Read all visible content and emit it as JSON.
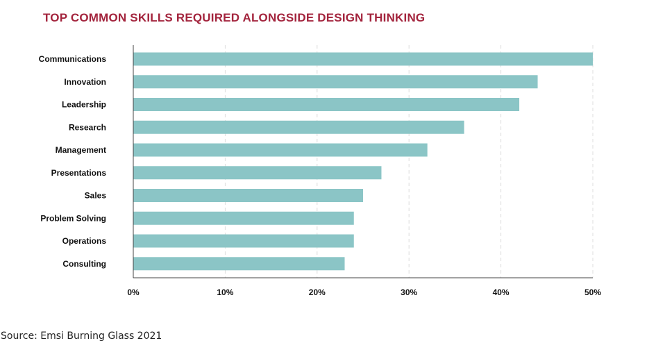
{
  "chart_data": {
    "type": "bar",
    "orientation": "horizontal",
    "title": "TOP COMMON SKILLS REQUIRED ALONGSIDE DESIGN THINKING",
    "categories": [
      "Communications",
      "Innovation",
      "Leadership",
      "Research",
      "Management",
      "Presentations",
      "Sales",
      "Problem Solving",
      "Operations",
      "Consulting"
    ],
    "values": [
      50,
      44,
      42,
      36,
      32,
      27,
      25,
      24,
      24,
      23
    ],
    "xlim": [
      0,
      50
    ],
    "x_ticks": [
      0,
      10,
      20,
      30,
      40,
      50
    ],
    "x_tick_labels": [
      "0%",
      "10%",
      "20%",
      "30%",
      "40%",
      "50%"
    ],
    "xlabel": "",
    "ylabel": "",
    "grid": "vertical dashed",
    "legend": "none",
    "bar_color": "#8bc5c6",
    "title_color": "#a3243d"
  },
  "source": "Source: Emsi Burning Glass 2021"
}
